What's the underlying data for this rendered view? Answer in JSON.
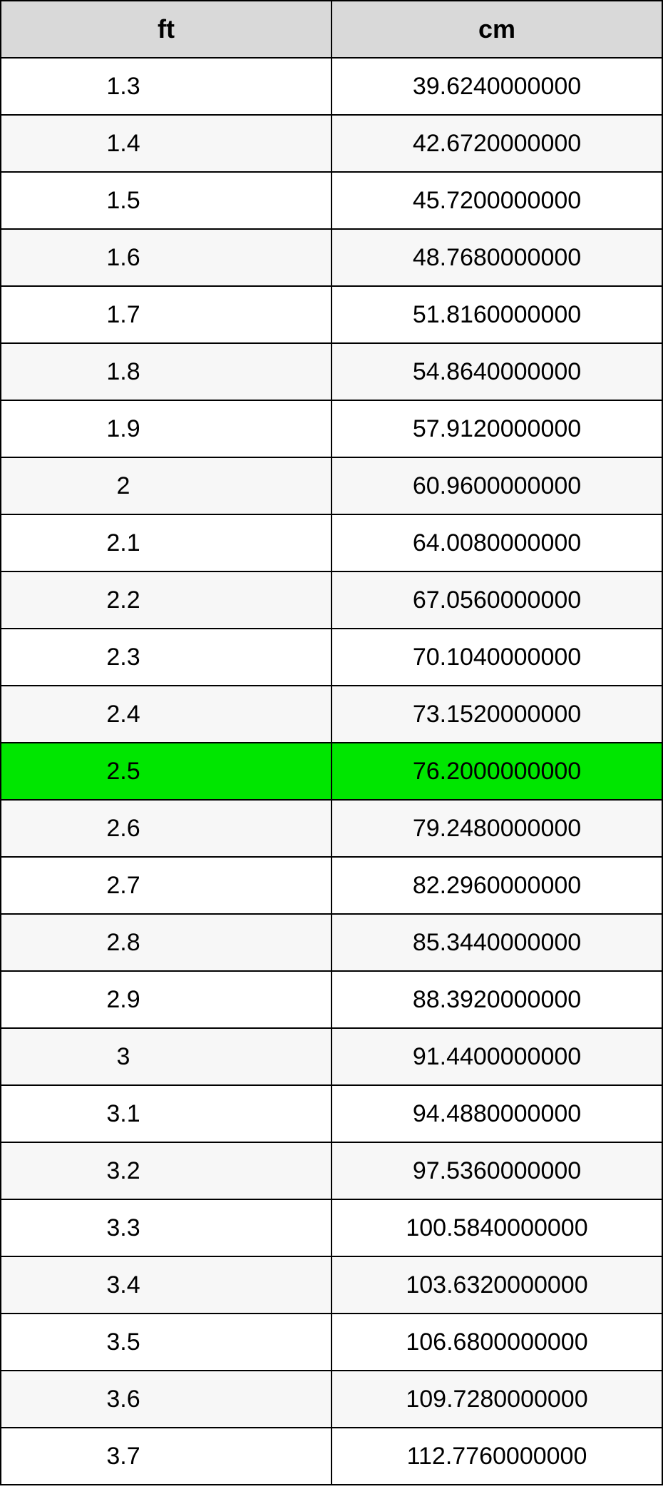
{
  "table": {
    "type": "table",
    "columns": [
      {
        "key": "ft",
        "label": "ft",
        "width_pct": 50,
        "align": "center"
      },
      {
        "key": "cm",
        "label": "cm",
        "width_pct": 50,
        "align": "center"
      }
    ],
    "header_bg": "#d9d9d9",
    "header_fontsize": 36,
    "header_fontweight": "bold",
    "cell_fontsize": 34,
    "border_color": "#000000",
    "border_width": 2,
    "row_bg_even": "#ffffff",
    "row_bg_odd": "#f7f7f7",
    "highlight_bg": "#00e600",
    "text_color": "#000000",
    "rows": [
      {
        "ft": "1.3",
        "cm": "39.6240000000",
        "highlight": false
      },
      {
        "ft": "1.4",
        "cm": "42.6720000000",
        "highlight": false
      },
      {
        "ft": "1.5",
        "cm": "45.7200000000",
        "highlight": false
      },
      {
        "ft": "1.6",
        "cm": "48.7680000000",
        "highlight": false
      },
      {
        "ft": "1.7",
        "cm": "51.8160000000",
        "highlight": false
      },
      {
        "ft": "1.8",
        "cm": "54.8640000000",
        "highlight": false
      },
      {
        "ft": "1.9",
        "cm": "57.9120000000",
        "highlight": false
      },
      {
        "ft": "2",
        "cm": "60.9600000000",
        "highlight": false
      },
      {
        "ft": "2.1",
        "cm": "64.0080000000",
        "highlight": false
      },
      {
        "ft": "2.2",
        "cm": "67.0560000000",
        "highlight": false
      },
      {
        "ft": "2.3",
        "cm": "70.1040000000",
        "highlight": false
      },
      {
        "ft": "2.4",
        "cm": "73.1520000000",
        "highlight": false
      },
      {
        "ft": "2.5",
        "cm": "76.2000000000",
        "highlight": true
      },
      {
        "ft": "2.6",
        "cm": "79.2480000000",
        "highlight": false
      },
      {
        "ft": "2.7",
        "cm": "82.2960000000",
        "highlight": false
      },
      {
        "ft": "2.8",
        "cm": "85.3440000000",
        "highlight": false
      },
      {
        "ft": "2.9",
        "cm": "88.3920000000",
        "highlight": false
      },
      {
        "ft": "3",
        "cm": "91.4400000000",
        "highlight": false
      },
      {
        "ft": "3.1",
        "cm": "94.4880000000",
        "highlight": false
      },
      {
        "ft": "3.2",
        "cm": "97.5360000000",
        "highlight": false
      },
      {
        "ft": "3.3",
        "cm": "100.5840000000",
        "highlight": false
      },
      {
        "ft": "3.4",
        "cm": "103.6320000000",
        "highlight": false
      },
      {
        "ft": "3.5",
        "cm": "106.6800000000",
        "highlight": false
      },
      {
        "ft": "3.6",
        "cm": "109.7280000000",
        "highlight": false
      },
      {
        "ft": "3.7",
        "cm": "112.7760000000",
        "highlight": false
      }
    ]
  }
}
